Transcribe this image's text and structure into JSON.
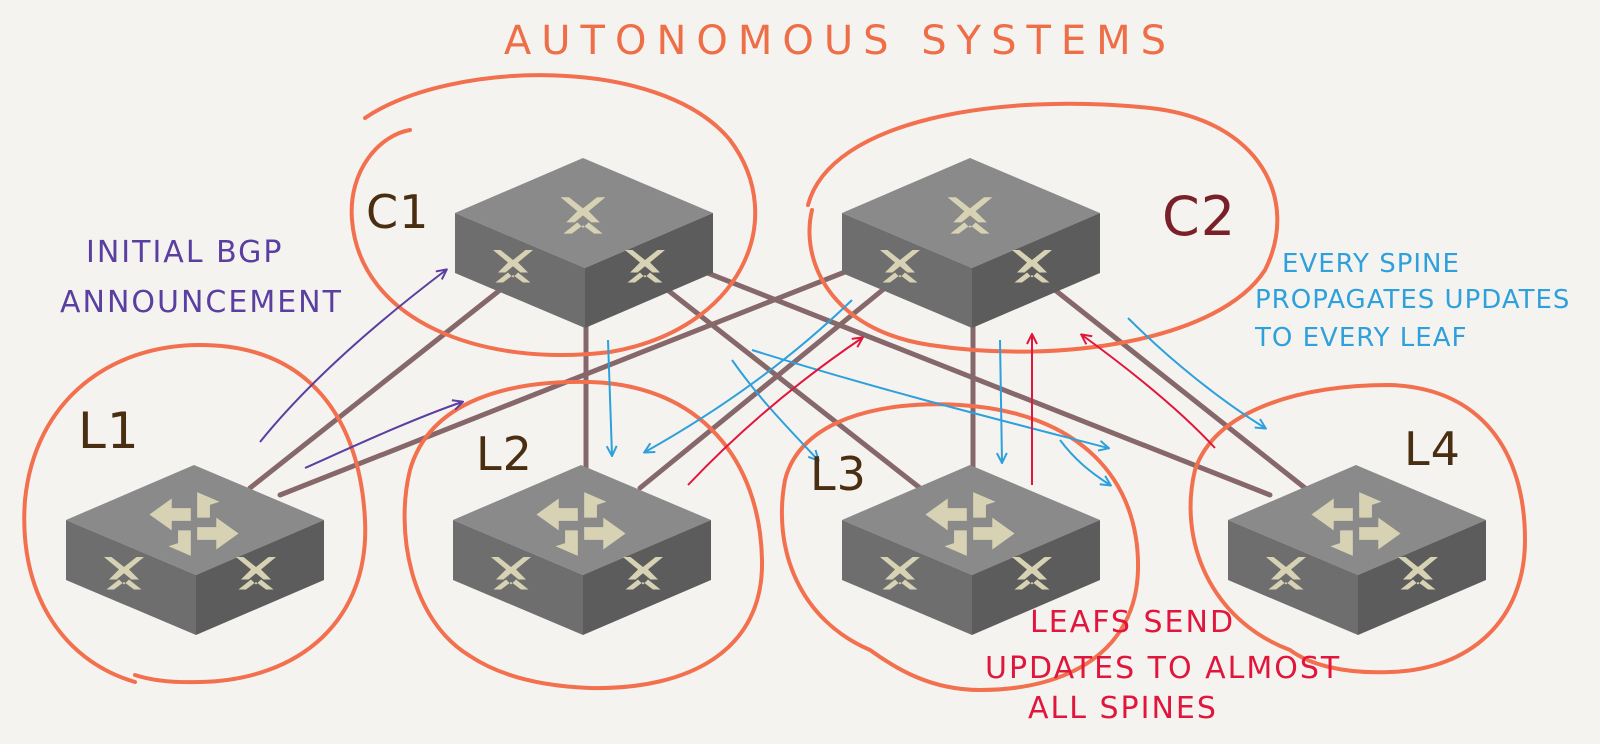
{
  "title": "AUTONOMOUS SYSTEMS",
  "colors": {
    "background": "#f5f3f0",
    "as_circle": "#f2704e",
    "title": "#ee6e47",
    "link": "#7a5a5c",
    "initial_announcement": "#5a3fa0",
    "spine_updates": "#2ea0dc",
    "leaf_updates": "#e0163c",
    "label_dark": "#4a2e12",
    "label_c2": "#7a2028",
    "switch_top": "#8a8a8a",
    "switch_front": "#6e6e6e",
    "switch_side": "#5c5c5c",
    "switch_glyph": "#d8d2b4"
  },
  "spines": [
    {
      "id": "C1",
      "label": "C1"
    },
    {
      "id": "C2",
      "label": "C2"
    }
  ],
  "leaves": [
    {
      "id": "L1",
      "label": "L1"
    },
    {
      "id": "L2",
      "label": "L2"
    },
    {
      "id": "L3",
      "label": "L3"
    },
    {
      "id": "L4",
      "label": "L4"
    }
  ],
  "annotations": {
    "initial_bgp": [
      "INITIAL BGP",
      "ANNOUNCEMENT"
    ],
    "spine_propagation": [
      "EVERY SPINE",
      "PROPAGATES UPDATES",
      "TO EVERY LEAF"
    ],
    "leaf_updates": [
      "LEAFS SEND",
      "UPDATES TO ALMOST",
      "ALL SPINES"
    ]
  }
}
